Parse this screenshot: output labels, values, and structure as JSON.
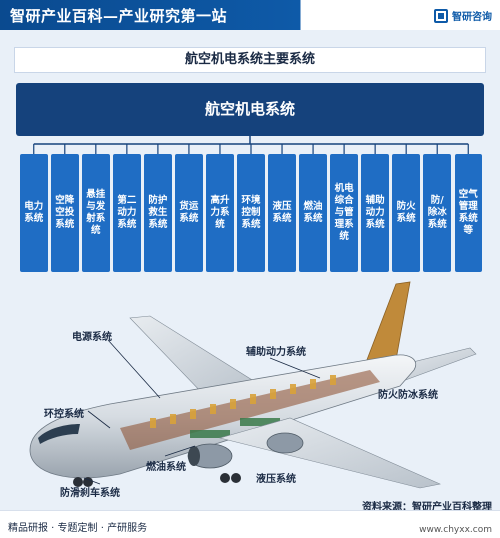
{
  "header": {
    "title": "智研产业百科—产业研究第一站",
    "logo_text": "智研咨询"
  },
  "subtitle": "航空机电系统主要系统",
  "root": "航空机电系统",
  "subsystems": [
    "电力系统",
    "空降空投系统",
    "悬挂与发射系统",
    "第二动力系统",
    "防护救生系统",
    "货运系统",
    "高升力系统",
    "环境控制系统",
    "液压系统",
    "燃油系统",
    "机电综合与管理系统",
    "辅助动力系统",
    "防火系统",
    "防/除冰系统",
    "空气管理系统等"
  ],
  "plane_labels": {
    "power": "电源系统",
    "apu": "辅助动力系统",
    "fire_ice": "防火防冰系统",
    "env": "环控系统",
    "fuel": "燃油系统",
    "hydraulic": "液压系统",
    "brake": "防滑刹车系统"
  },
  "footer": {
    "left": "精品研报 · 专题定制 · 产研服务",
    "source": "资料来源：智研产业百科整理",
    "url": "www.chyxx.com"
  },
  "colors": {
    "header_blue": "#0e5aa8",
    "root_blue": "#15427c",
    "subsys_blue": "#1f6dc4",
    "panel_bg": "#e9f0f8"
  }
}
